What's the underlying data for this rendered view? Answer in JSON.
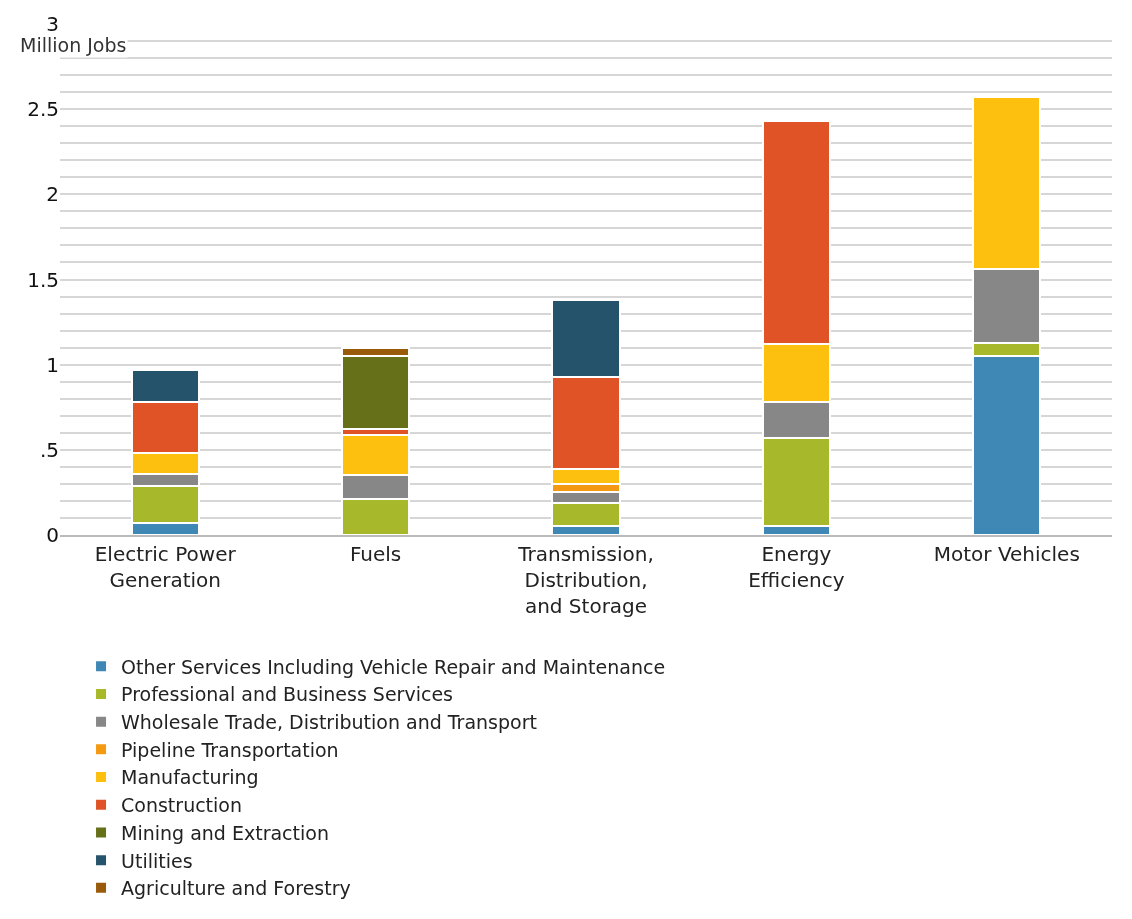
{
  "chart_data": {
    "type": "bar",
    "stacked": true,
    "ylabel": "Million Jobs",
    "categories": [
      "Electric Power Generation",
      "Fuels",
      "Transmission, Distribution, and Storage",
      "Energy Efficiency",
      "Motor Vehicles"
    ],
    "ylim": [
      0,
      3
    ],
    "yticks": [
      0,
      {
        "value": 0.1,
        "label": null
      },
      {
        "value": 0.2,
        "label": null
      },
      {
        "value": 0.3,
        "label": null
      },
      {
        "value": 0.4,
        "label": null
      },
      {
        "value": 0.5,
        "label": ".5"
      },
      {
        "value": 0.6,
        "label": null
      },
      {
        "value": 0.7,
        "label": null
      },
      {
        "value": 0.8,
        "label": null
      },
      {
        "value": 0.9,
        "label": null
      },
      1,
      {
        "value": 1.1,
        "label": null
      },
      {
        "value": 1.2,
        "label": null
      },
      {
        "value": 1.3,
        "label": null
      },
      {
        "value": 1.4,
        "label": null
      },
      1.5,
      {
        "value": 1.6,
        "label": null
      },
      {
        "value": 1.7,
        "label": null
      },
      {
        "value": 1.8,
        "label": null
      },
      {
        "value": 1.9,
        "label": null
      },
      2,
      {
        "value": 2.1,
        "label": null
      },
      {
        "value": 2.2,
        "label": null
      },
      {
        "value": 2.3,
        "label": null
      },
      {
        "value": 2.4,
        "label": null
      },
      2.5,
      {
        "value": 2.6,
        "label": null
      },
      {
        "value": 2.7,
        "label": null
      },
      {
        "value": 2.8,
        "label": null
      },
      {
        "value": 2.9,
        "label": null
      },
      3
    ],
    "grid": "y",
    "legend": "bottom",
    "series": [
      {
        "name": "Other Services Including Vehicle Repair and Maintenance",
        "color": "#3f88b5",
        "values": [
          0.07,
          null,
          0.05,
          0.05,
          1.05
        ]
      },
      {
        "name": "Professional and Business Services",
        "color": "#a7b82a",
        "values": [
          0.22,
          0.21,
          0.14,
          0.52,
          0.08
        ]
      },
      {
        "name": "Wholesale Trade, Distribution and Transport",
        "color": "#878787",
        "values": [
          0.07,
          0.14,
          0.06,
          0.21,
          0.43
        ]
      },
      {
        "name": "Pipeline Transportation",
        "color": "#f39a12",
        "values": [
          null,
          null,
          0.05,
          null,
          null
        ]
      },
      {
        "name": "Manufacturing",
        "color": "#fdc00f",
        "values": [
          0.12,
          0.24,
          0.09,
          0.34,
          1.01
        ]
      },
      {
        "name": "Construction",
        "color": "#df5326",
        "values": [
          0.3,
          0.03,
          0.54,
          1.31,
          null
        ]
      },
      {
        "name": "Mining and Extraction",
        "color": "#667018",
        "values": [
          null,
          0.43,
          null,
          null,
          null
        ]
      },
      {
        "name": "Utilities",
        "color": "#25536b",
        "values": [
          0.19,
          null,
          0.45,
          null,
          null
        ]
      },
      {
        "name": "Agriculture and Forestry",
        "color": "#9a5a0c",
        "values": [
          null,
          0.05,
          null,
          null,
          null
        ]
      }
    ]
  }
}
